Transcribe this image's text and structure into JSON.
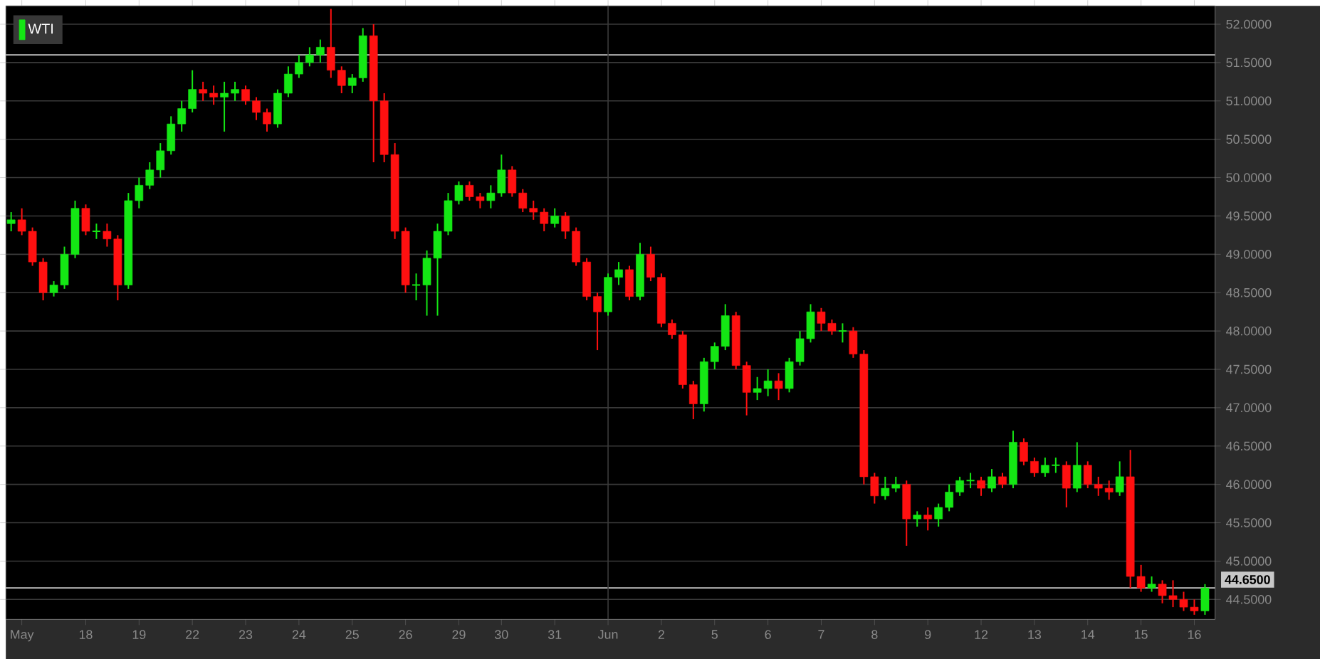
{
  "chart_data": {
    "type": "candlestick",
    "legend": "top left",
    "grid": "y",
    "categories": [
      null,
      "May",
      null,
      null,
      null,
      null,
      null,
      "18",
      null,
      null,
      null,
      null,
      "19",
      null,
      null,
      null,
      null,
      "22",
      null,
      null,
      null,
      null,
      "23",
      null,
      null,
      null,
      null,
      "24",
      null,
      null,
      null,
      null,
      "25",
      null,
      null,
      null,
      null,
      "26",
      null,
      null,
      null,
      null,
      "29",
      null,
      null,
      null,
      "30",
      null,
      null,
      null,
      null,
      "31",
      null,
      null,
      null,
      null,
      "Jun",
      null,
      null,
      null,
      null,
      "2",
      null,
      null,
      null,
      null,
      "5",
      null,
      null,
      null,
      null,
      "6",
      null,
      null,
      null,
      null,
      "7",
      null,
      null,
      null,
      null,
      "8",
      null,
      null,
      null,
      null,
      "9",
      null,
      null,
      null,
      null,
      "12",
      null,
      null,
      null,
      null,
      "13",
      null,
      null,
      null,
      null,
      "14",
      null,
      null,
      null,
      null,
      "15",
      null,
      null,
      null,
      null,
      "16",
      null
    ],
    "series": [
      {
        "name": "WTI",
        "ohlc": [
          [
            49.4,
            49.55,
            49.3,
            49.45
          ],
          [
            49.45,
            49.6,
            49.25,
            49.3
          ],
          [
            49.3,
            49.35,
            48.85,
            48.9
          ],
          [
            48.9,
            48.95,
            48.4,
            48.5
          ],
          [
            48.5,
            48.65,
            48.45,
            48.6
          ],
          [
            48.6,
            49.1,
            48.55,
            49.0
          ],
          [
            49.0,
            49.7,
            48.95,
            49.6
          ],
          [
            49.6,
            49.65,
            49.25,
            49.3
          ],
          [
            49.3,
            49.4,
            49.2,
            49.3
          ],
          [
            49.3,
            49.4,
            49.1,
            49.2
          ],
          [
            49.2,
            49.25,
            48.4,
            48.6
          ],
          [
            48.6,
            49.8,
            48.55,
            49.7
          ],
          [
            49.7,
            50.0,
            49.6,
            49.9
          ],
          [
            49.9,
            50.2,
            49.85,
            50.1
          ],
          [
            50.1,
            50.45,
            50.0,
            50.35
          ],
          [
            50.35,
            50.8,
            50.3,
            50.7
          ],
          [
            50.7,
            51.0,
            50.6,
            50.9
          ],
          [
            50.9,
            51.4,
            50.85,
            51.15
          ],
          [
            51.15,
            51.25,
            51.0,
            51.1
          ],
          [
            51.1,
            51.2,
            50.95,
            51.05
          ],
          [
            51.05,
            51.25,
            50.6,
            51.1
          ],
          [
            51.1,
            51.25,
            51.0,
            51.15
          ],
          [
            51.15,
            51.2,
            50.95,
            51.0
          ],
          [
            51.0,
            51.05,
            50.75,
            50.85
          ],
          [
            50.85,
            50.9,
            50.6,
            50.7
          ],
          [
            50.7,
            51.15,
            50.65,
            51.1
          ],
          [
            51.1,
            51.45,
            51.05,
            51.35
          ],
          [
            51.35,
            51.6,
            51.3,
            51.5
          ],
          [
            51.5,
            51.7,
            51.45,
            51.6
          ],
          [
            51.6,
            51.8,
            51.5,
            51.7
          ],
          [
            51.7,
            52.2,
            51.3,
            51.4
          ],
          [
            51.4,
            51.45,
            51.1,
            51.2
          ],
          [
            51.2,
            51.35,
            51.1,
            51.3
          ],
          [
            51.3,
            51.95,
            51.25,
            51.85
          ],
          [
            51.85,
            52.0,
            50.2,
            51.0
          ],
          [
            51.0,
            51.1,
            50.2,
            50.3
          ],
          [
            50.3,
            50.45,
            49.2,
            49.3
          ],
          [
            49.3,
            49.35,
            48.5,
            48.6
          ],
          [
            48.6,
            48.75,
            48.4,
            48.6
          ],
          [
            48.6,
            49.05,
            48.2,
            48.95
          ],
          [
            48.95,
            49.4,
            48.2,
            49.3
          ],
          [
            49.3,
            49.8,
            49.25,
            49.7
          ],
          [
            49.7,
            49.95,
            49.65,
            49.9
          ],
          [
            49.9,
            49.95,
            49.7,
            49.75
          ],
          [
            49.75,
            49.8,
            49.6,
            49.7
          ],
          [
            49.7,
            49.9,
            49.6,
            49.8
          ],
          [
            49.8,
            50.3,
            49.75,
            50.1
          ],
          [
            50.1,
            50.15,
            49.75,
            49.8
          ],
          [
            49.8,
            49.85,
            49.55,
            49.6
          ],
          [
            49.6,
            49.7,
            49.45,
            49.55
          ],
          [
            49.55,
            49.6,
            49.3,
            49.4
          ],
          [
            49.4,
            49.6,
            49.35,
            49.5
          ],
          [
            49.5,
            49.55,
            49.2,
            49.3
          ],
          [
            49.3,
            49.35,
            48.85,
            48.9
          ],
          [
            48.9,
            48.95,
            48.4,
            48.45
          ],
          [
            48.45,
            48.5,
            47.75,
            48.25
          ],
          [
            48.25,
            48.75,
            48.2,
            48.7
          ],
          [
            48.7,
            48.9,
            48.6,
            48.8
          ],
          [
            48.8,
            48.85,
            48.4,
            48.45
          ],
          [
            48.45,
            49.15,
            48.4,
            49.0
          ],
          [
            49.0,
            49.1,
            48.65,
            48.7
          ],
          [
            48.7,
            48.75,
            48.05,
            48.1
          ],
          [
            48.1,
            48.15,
            47.9,
            47.95
          ],
          [
            47.95,
            48.0,
            47.25,
            47.3
          ],
          [
            47.3,
            47.35,
            46.85,
            47.05
          ],
          [
            47.05,
            47.65,
            46.95,
            47.6
          ],
          [
            47.6,
            47.85,
            47.5,
            47.8
          ],
          [
            47.8,
            48.35,
            47.75,
            48.2
          ],
          [
            48.2,
            48.25,
            47.5,
            47.55
          ],
          [
            47.55,
            47.6,
            46.9,
            47.2
          ],
          [
            47.2,
            47.4,
            47.1,
            47.25
          ],
          [
            47.25,
            47.5,
            47.15,
            47.35
          ],
          [
            47.35,
            47.45,
            47.1,
            47.25
          ],
          [
            47.25,
            47.65,
            47.2,
            47.6
          ],
          [
            47.6,
            48.0,
            47.55,
            47.9
          ],
          [
            47.9,
            48.35,
            47.85,
            48.25
          ],
          [
            48.25,
            48.3,
            48.0,
            48.1
          ],
          [
            48.1,
            48.15,
            47.95,
            48.0
          ],
          [
            48.0,
            48.1,
            47.85,
            48.0
          ],
          [
            48.0,
            48.05,
            47.65,
            47.7
          ],
          [
            47.7,
            47.75,
            46.0,
            46.1
          ],
          [
            46.1,
            46.15,
            45.75,
            45.85
          ],
          [
            45.85,
            46.1,
            45.8,
            45.95
          ],
          [
            45.95,
            46.1,
            45.9,
            46.0
          ],
          [
            46.0,
            46.05,
            45.2,
            45.55
          ],
          [
            45.55,
            45.65,
            45.45,
            45.6
          ],
          [
            45.6,
            45.7,
            45.4,
            45.55
          ],
          [
            45.55,
            45.75,
            45.45,
            45.7
          ],
          [
            45.7,
            46.0,
            45.65,
            45.9
          ],
          [
            45.9,
            46.1,
            45.85,
            46.05
          ],
          [
            46.05,
            46.15,
            45.95,
            46.05
          ],
          [
            46.05,
            46.1,
            45.85,
            45.95
          ],
          [
            45.95,
            46.2,
            45.9,
            46.1
          ],
          [
            46.1,
            46.15,
            45.95,
            46.0
          ],
          [
            46.0,
            46.7,
            45.95,
            46.55
          ],
          [
            46.55,
            46.6,
            46.25,
            46.3
          ],
          [
            46.3,
            46.35,
            46.1,
            46.15
          ],
          [
            46.15,
            46.35,
            46.1,
            46.25
          ],
          [
            46.25,
            46.35,
            46.15,
            46.25
          ],
          [
            46.25,
            46.3,
            45.7,
            45.95
          ],
          [
            45.95,
            46.55,
            45.9,
            46.25
          ],
          [
            46.25,
            46.3,
            45.95,
            46.0
          ],
          [
            46.0,
            46.1,
            45.85,
            45.95
          ],
          [
            45.95,
            46.05,
            45.8,
            45.9
          ],
          [
            45.9,
            46.3,
            45.85,
            46.1
          ],
          [
            46.1,
            46.45,
            44.65,
            44.8
          ],
          [
            44.8,
            44.95,
            44.6,
            44.65
          ],
          [
            44.65,
            44.8,
            44.6,
            44.7
          ],
          [
            44.7,
            44.75,
            44.45,
            44.55
          ],
          [
            44.55,
            44.75,
            44.4,
            44.5
          ],
          [
            44.5,
            44.6,
            44.35,
            44.4
          ],
          [
            44.4,
            44.5,
            44.3,
            44.35
          ],
          [
            44.35,
            44.7,
            44.3,
            44.65
          ]
        ]
      }
    ],
    "ylim": [
      44.24,
      52.24
    ],
    "yticks": [
      {
        "value": 44.5,
        "label": "44.5000"
      },
      {
        "value": 45,
        "label": "45.0000"
      },
      {
        "value": 45.5,
        "label": "45.5000"
      },
      {
        "value": 46,
        "label": "46.0000"
      },
      {
        "value": 46.5,
        "label": "46.5000"
      },
      {
        "value": 47,
        "label": "47.0000"
      },
      {
        "value": 47.5,
        "label": "47.5000"
      },
      {
        "value": 48,
        "label": "48.0000"
      },
      {
        "value": 48.5,
        "label": "48.5000"
      },
      {
        "value": 49,
        "label": "49.0000"
      },
      {
        "value": 49.5,
        "label": "49.5000"
      },
      {
        "value": 50,
        "label": "50.0000"
      },
      {
        "value": 50.5,
        "label": "50.5000"
      },
      {
        "value": 51,
        "label": "51.0000"
      },
      {
        "value": 51.5,
        "label": "51.5000"
      },
      {
        "value": 52,
        "label": "52.0000"
      }
    ],
    "ref_lines": [
      {
        "axis": "y",
        "value": 51.6,
        "color": "#c8c8c8"
      },
      {
        "axis": "y",
        "value": 44.65,
        "label": "44.6500",
        "color": "#c8c8c8"
      },
      {
        "axis": "x",
        "value": "Jun",
        "color": "#3c3c3c"
      }
    ]
  }
}
